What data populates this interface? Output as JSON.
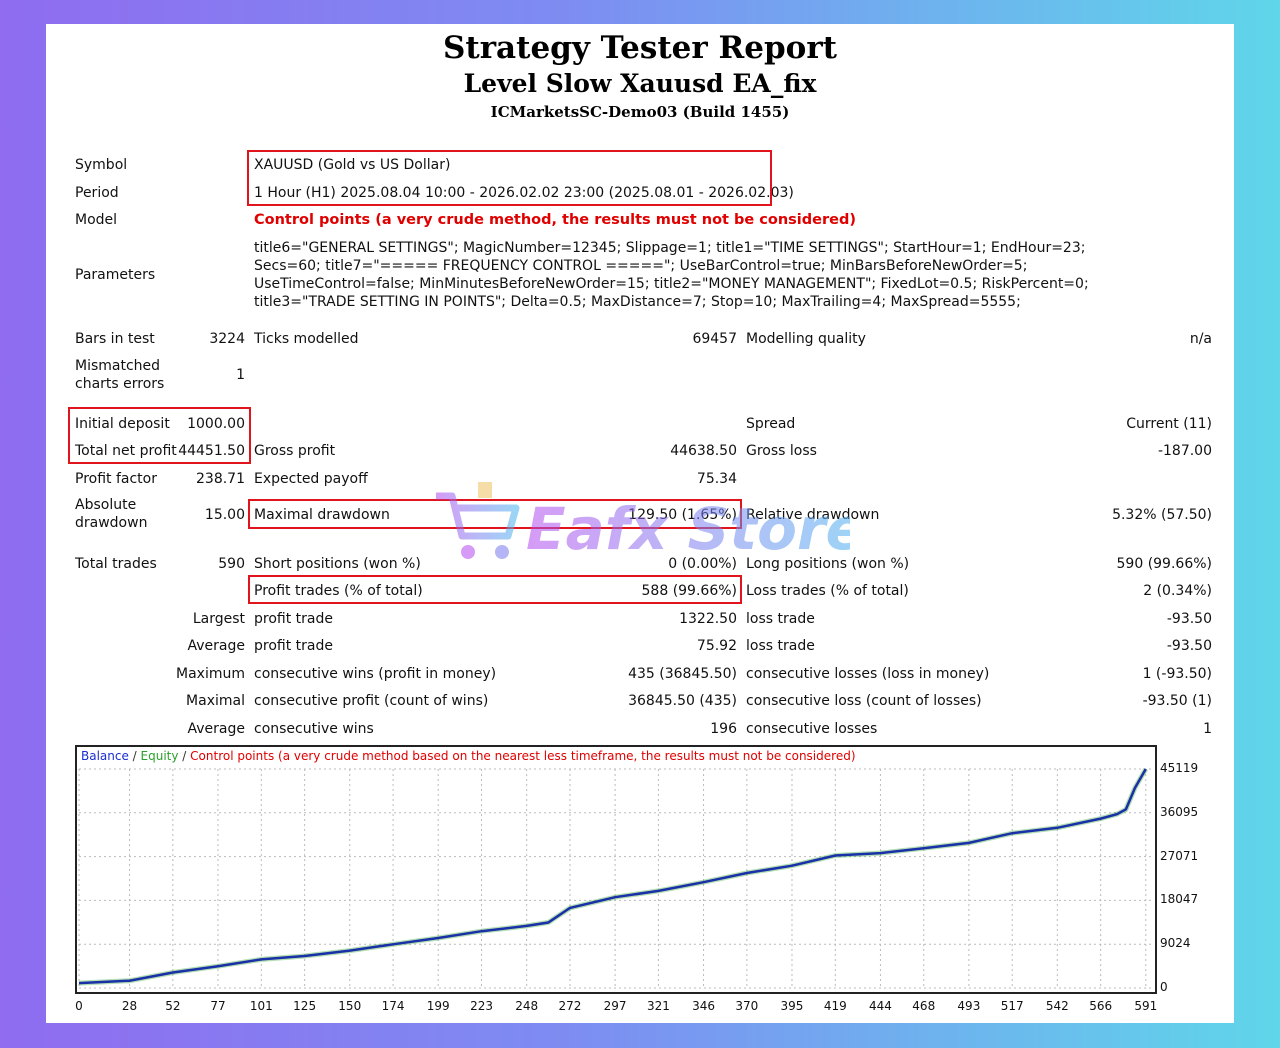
{
  "header": {
    "title": "Strategy Tester Report",
    "ea_name": "Level Slow Xauusd EA_fix",
    "server": "ICMarketsSC-Demo03 (Build 1455)"
  },
  "settings": {
    "symbol_label": "Symbol",
    "symbol_value": "XAUUSD (Gold vs US Dollar)",
    "period_label": "Period",
    "period_value": "1 Hour (H1) 2025.08.04 10:00 - 2026.02.02 23:00 (2025.08.01 - 2026.02.03)",
    "model_label": "Model",
    "model_value": "Control points (a very crude method, the results must not be considered)",
    "parameters_label": "Parameters",
    "parameters_value": "title6=\"GENERAL SETTINGS\"; MagicNumber=12345; Slippage=1; title1=\"TIME SETTINGS\"; StartHour=1; EndHour=23; Secs=60; title7=\"===== FREQUENCY CONTROL =====\"; UseBarControl=true; MinBarsBeforeNewOrder=5; UseTimeControl=false; MinMinutesBeforeNewOrder=15; title2=\"MONEY MANAGEMENT\"; FixedLot=0.5; RiskPercent=0; title3=\"TRADE SETTING IN POINTS\"; Delta=0.5; MaxDistance=7; Stop=10; MaxTrailing=4; MaxSpread=5555;"
  },
  "stats": {
    "bars_label": "Bars in test",
    "bars_value": "3224",
    "ticks_label": "Ticks modelled",
    "ticks_value": "69457",
    "quality_label": "Modelling quality",
    "quality_value": "n/a",
    "mismatch_label": "Mismatched charts errors",
    "mismatch_value": "1",
    "deposit_label": "Initial deposit",
    "deposit_value": "1000.00",
    "spread_label": "Spread",
    "spread_value": "Current (11)",
    "netprofit_label": "Total net profit",
    "netprofit_value": "44451.50",
    "grossprofit_label": "Gross profit",
    "grossprofit_value": "44638.50",
    "grossloss_label": "Gross loss",
    "grossloss_value": "-187.00",
    "pf_label": "Profit factor",
    "pf_value": "238.71",
    "ep_label": "Expected payoff",
    "ep_value": "75.34",
    "absdd_label": "Absolute drawdown",
    "absdd_value": "15.00",
    "maxdd_label": "Maximal drawdown",
    "maxdd_value": "129.50 (1.65%)",
    "reldd_label": "Relative drawdown",
    "reldd_value": "5.32% (57.50)",
    "trades_label": "Total trades",
    "trades_value": "590",
    "short_label": "Short positions (won %)",
    "short_value": "0 (0.00%)",
    "long_label": "Long positions (won %)",
    "long_value": "590 (99.66%)",
    "ptrades_label": "Profit trades (% of total)",
    "ptrades_value": "588 (99.66%)",
    "ltrades_label": "Loss trades (% of total)",
    "ltrades_value": "2 (0.34%)",
    "largest_label": "Largest",
    "lp_label": "profit trade",
    "lp_value": "1322.50",
    "ll_label": "loss trade",
    "ll_value": "-93.50",
    "average_label": "Average",
    "ap_label": "profit trade",
    "ap_value": "75.92",
    "al_label": "loss trade",
    "al_value": "-93.50",
    "maximum_label": "Maximum",
    "mcw_label": "consecutive wins (profit in money)",
    "mcw_value": "435 (36845.50)",
    "mcl_label": "consecutive losses (loss in money)",
    "mcl_value": "1 (-93.50)",
    "maximal_label": "Maximal",
    "mcp_label": "consecutive profit (count of wins)",
    "mcp_value": "36845.50 (435)",
    "mclc_label": "consecutive loss (count of losses)",
    "mclc_value": "-93.50 (1)",
    "average2_label": "Average",
    "acw_label": "consecutive wins",
    "acw_value": "196",
    "acl_label": "consecutive losses",
    "acl_value": "1"
  },
  "watermark": "Eafx Store",
  "chart_data": {
    "type": "line",
    "legend": {
      "balance": "Balance",
      "sep1": " / ",
      "equity": "Equity",
      "sep2": " / ",
      "note": "Control points (a very crude method based on the nearest less timeframe, the results must not be considered)"
    },
    "colors": {
      "balance": "#1a2fa8",
      "equity": "#22a022"
    },
    "x_ticks": [
      "0",
      "28",
      "52",
      "77",
      "101",
      "125",
      "150",
      "174",
      "199",
      "223",
      "248",
      "272",
      "297",
      "321",
      "346",
      "370",
      "395",
      "419",
      "444",
      "468",
      "493",
      "517",
      "542",
      "566",
      "591"
    ],
    "y_ticks": [
      "45119",
      "36095",
      "27071",
      "18047",
      "9024",
      "0"
    ],
    "xlim": [
      0,
      595
    ],
    "ylim": [
      0,
      45119
    ],
    "grid": true,
    "series": [
      {
        "key": "balance",
        "x": [
          0,
          28,
          52,
          77,
          101,
          125,
          150,
          174,
          199,
          223,
          248,
          260,
          272,
          297,
          321,
          346,
          370,
          395,
          419,
          444,
          468,
          493,
          517,
          542,
          566,
          575,
          580,
          585,
          591
        ],
        "y": [
          1000,
          1500,
          3200,
          4500,
          5900,
          6600,
          7700,
          9000,
          10300,
          11700,
          12800,
          13500,
          16500,
          18700,
          20000,
          21800,
          23700,
          25200,
          27300,
          27800,
          28800,
          29900,
          31900,
          33000,
          34900,
          35800,
          36800,
          41200,
          45119
        ]
      }
    ]
  }
}
